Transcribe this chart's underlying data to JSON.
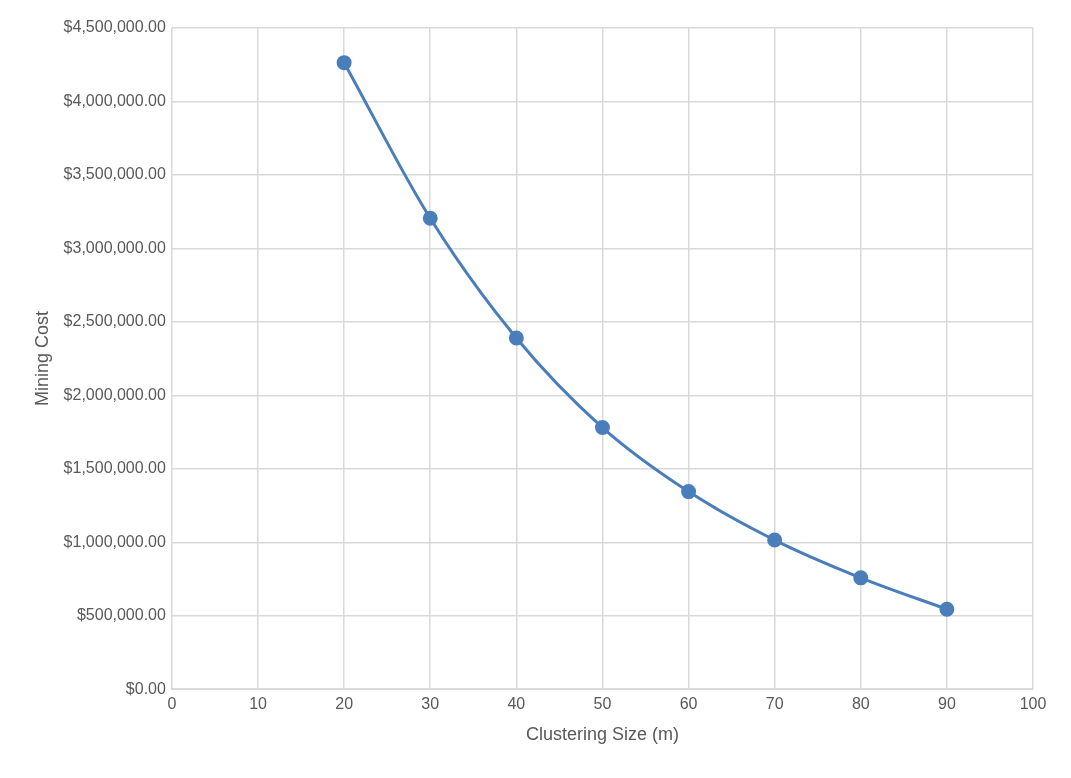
{
  "chart_data": {
    "type": "line",
    "xlabel": "Clustering Size (m)",
    "ylabel": "Mining Cost",
    "x": [
      20,
      30,
      40,
      50,
      60,
      70,
      80,
      90
    ],
    "series": [
      {
        "color": "#4a7ebb",
        "values": [
          4264000,
          3205000,
          2390000,
          1781000,
          1345000,
          1015000,
          758000,
          544000
        ]
      }
    ],
    "xlim": [
      0,
      100
    ],
    "xticks": [
      0,
      10,
      20,
      30,
      40,
      50,
      60,
      70,
      80,
      90,
      100
    ],
    "ylim": [
      0,
      4500000
    ],
    "yticks": [
      {
        "value": 0,
        "label": "$0.00"
      },
      {
        "value": 500000,
        "label": "$500,000.00"
      },
      {
        "value": 1000000,
        "label": "$1,000,000.00"
      },
      {
        "value": 1500000,
        "label": "$1,500,000.00"
      },
      {
        "value": 2000000,
        "label": "$2,000,000.00"
      },
      {
        "value": 2500000,
        "label": "$2,500,000.00"
      },
      {
        "value": 3000000,
        "label": "$3,000,000.00"
      },
      {
        "value": 3500000,
        "label": "$3,500,000.00"
      },
      {
        "value": 4000000,
        "label": "$4,000,000.00"
      },
      {
        "value": 4500000,
        "label": "$4,500,000.00"
      }
    ],
    "grid": true,
    "legend": false,
    "marker": "circle",
    "line_style": "solid"
  }
}
